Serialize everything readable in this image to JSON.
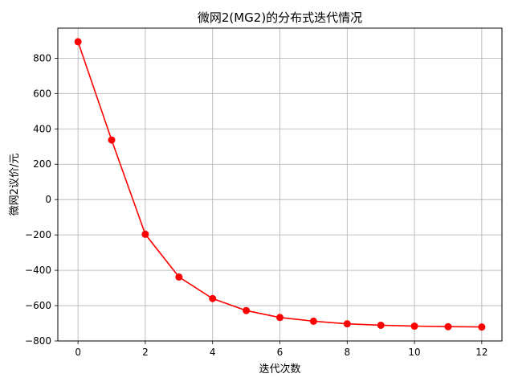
{
  "chart_data": {
    "type": "line",
    "title": "微网2(MG2)的分布式迭代情况",
    "xlabel": "迭代次数",
    "ylabel": "微网2议价/元",
    "x": [
      0,
      1,
      2,
      3,
      4,
      5,
      6,
      7,
      8,
      9,
      10,
      11,
      12
    ],
    "series": [
      {
        "values": [
          893,
          337,
          -196,
          -438,
          -560,
          -628,
          -667,
          -688,
          -703,
          -711,
          -716,
          -719,
          -721
        ],
        "color": "#ff0000",
        "marker": "circle"
      }
    ],
    "xlim": [
      -0.6,
      12.6
    ],
    "ylim": [
      -800,
      970
    ],
    "xticks": [
      0,
      2,
      4,
      6,
      8,
      10,
      12
    ],
    "yticks": [
      -800,
      -600,
      -400,
      -200,
      0,
      200,
      400,
      600,
      800
    ],
    "xtick_labels": [
      "0",
      "2",
      "4",
      "6",
      "8",
      "10",
      "12"
    ],
    "ytick_labels": [
      "−800",
      "−600",
      "−400",
      "−200",
      "0",
      "200",
      "400",
      "600",
      "800"
    ],
    "grid": true,
    "legend": false
  }
}
